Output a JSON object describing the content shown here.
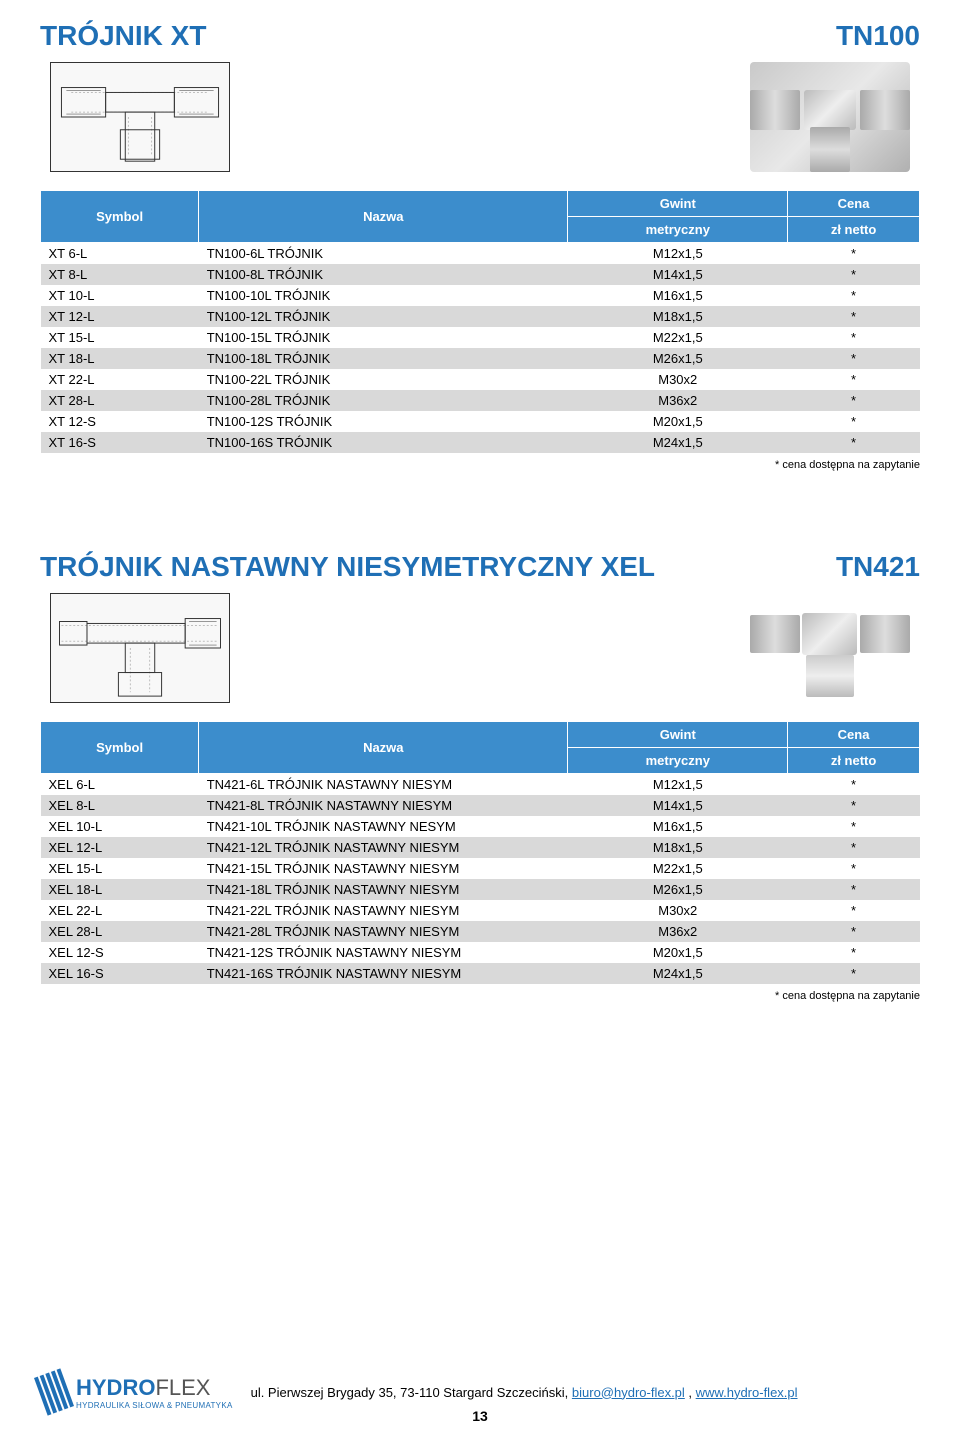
{
  "section1": {
    "title_left": "TRÓJNIK XT",
    "title_right": "TN100",
    "headers": {
      "symbol": "Symbol",
      "nazwa": "Nazwa",
      "gwint_top": "Gwint",
      "gwint_sub": "metryczny",
      "cena_top": "Cena",
      "cena_sub": "zł netto"
    },
    "rows": [
      {
        "symbol": "XT 6-L",
        "nazwa": "TN100-6L TRÓJNIK",
        "gwint": "M12x1,5",
        "cena": "*"
      },
      {
        "symbol": "XT 8-L",
        "nazwa": "TN100-8L TRÓJNIK",
        "gwint": "M14x1,5",
        "cena": "*"
      },
      {
        "symbol": "XT 10-L",
        "nazwa": "TN100-10L TRÓJNIK",
        "gwint": "M16x1,5",
        "cena": "*"
      },
      {
        "symbol": "XT 12-L",
        "nazwa": "TN100-12L TRÓJNIK",
        "gwint": "M18x1,5",
        "cena": "*"
      },
      {
        "symbol": "XT 15-L",
        "nazwa": "TN100-15L TRÓJNIK",
        "gwint": "M22x1,5",
        "cena": "*"
      },
      {
        "symbol": "XT 18-L",
        "nazwa": "TN100-18L TRÓJNIK",
        "gwint": "M26x1,5",
        "cena": "*"
      },
      {
        "symbol": "XT 22-L",
        "nazwa": "TN100-22L TRÓJNIK",
        "gwint": "M30x2",
        "cena": "*"
      },
      {
        "symbol": "XT 28-L",
        "nazwa": "TN100-28L TRÓJNIK",
        "gwint": "M36x2",
        "cena": "*"
      },
      {
        "symbol": "XT 12-S",
        "nazwa": "TN100-12S TRÓJNIK",
        "gwint": "M20x1,5",
        "cena": "*"
      },
      {
        "symbol": "XT 16-S",
        "nazwa": "TN100-16S TRÓJNIK",
        "gwint": "M24x1,5",
        "cena": "*"
      }
    ],
    "footnote": "* cena dostępna na zapytanie"
  },
  "section2": {
    "title_left": "TRÓJNIK NASTAWNY NIESYMETRYCZNY XEL",
    "title_right": "TN421",
    "headers": {
      "symbol": "Symbol",
      "nazwa": "Nazwa",
      "gwint_top": "Gwint",
      "gwint_sub": "metryczny",
      "cena_top": "Cena",
      "cena_sub": "zł netto"
    },
    "rows": [
      {
        "symbol": "XEL 6-L",
        "nazwa": "TN421-6L TRÓJNIK NASTAWNY NIESYM",
        "gwint": "M12x1,5",
        "cena": "*"
      },
      {
        "symbol": "XEL 8-L",
        "nazwa": "TN421-8L TRÓJNIK NASTAWNY NIESYM",
        "gwint": "M14x1,5",
        "cena": "*"
      },
      {
        "symbol": "XEL 10-L",
        "nazwa": "TN421-10L TRÓJNIK NASTAWNY NESYM",
        "gwint": "M16x1,5",
        "cena": "*"
      },
      {
        "symbol": "XEL 12-L",
        "nazwa": "TN421-12L TRÓJNIK NASTAWNY NIESYM",
        "gwint": "M18x1,5",
        "cena": "*"
      },
      {
        "symbol": "XEL 15-L",
        "nazwa": "TN421-15L TRÓJNIK NASTAWNY NIESYM",
        "gwint": "M22x1,5",
        "cena": "*"
      },
      {
        "symbol": "XEL 18-L",
        "nazwa": "TN421-18L TRÓJNIK NASTAWNY NIESYM",
        "gwint": "M26x1,5",
        "cena": "*"
      },
      {
        "symbol": "XEL 22-L",
        "nazwa": "TN421-22L TRÓJNIK NASTAWNY NIESYM",
        "gwint": "M30x2",
        "cena": "*"
      },
      {
        "symbol": "XEL 28-L",
        "nazwa": "TN421-28L TRÓJNIK NASTAWNY NIESYM",
        "gwint": "M36x2",
        "cena": "*"
      },
      {
        "symbol": "XEL 12-S",
        "nazwa": "TN421-12S TRÓJNIK NASTAWNY NIESYM",
        "gwint": "M20x1,5",
        "cena": "*"
      },
      {
        "symbol": "XEL 16-S",
        "nazwa": "TN421-16S TRÓJNIK NASTAWNY NIESYM",
        "gwint": "M24x1,5",
        "cena": "*"
      }
    ],
    "footnote": "* cena dostępna na zapytanie"
  },
  "footer": {
    "logo_name_bold": "HYDRO",
    "logo_name_thin": "FLEX",
    "logo_tag": "HYDRAULIKA SIŁOWA & PNEUMATYKA",
    "address_prefix": "ul. Pierwszej Brygady 35, 73-110 Stargard Szczeciński, ",
    "email": "biuro@hydro-flex.pl",
    "separator": " , ",
    "website": "www.hydro-flex.pl",
    "page_num": "13"
  },
  "colors": {
    "header_bg": "#3c8dcc",
    "title_color": "#1f6fb5",
    "stripe_gray": "#d9d9d9"
  }
}
